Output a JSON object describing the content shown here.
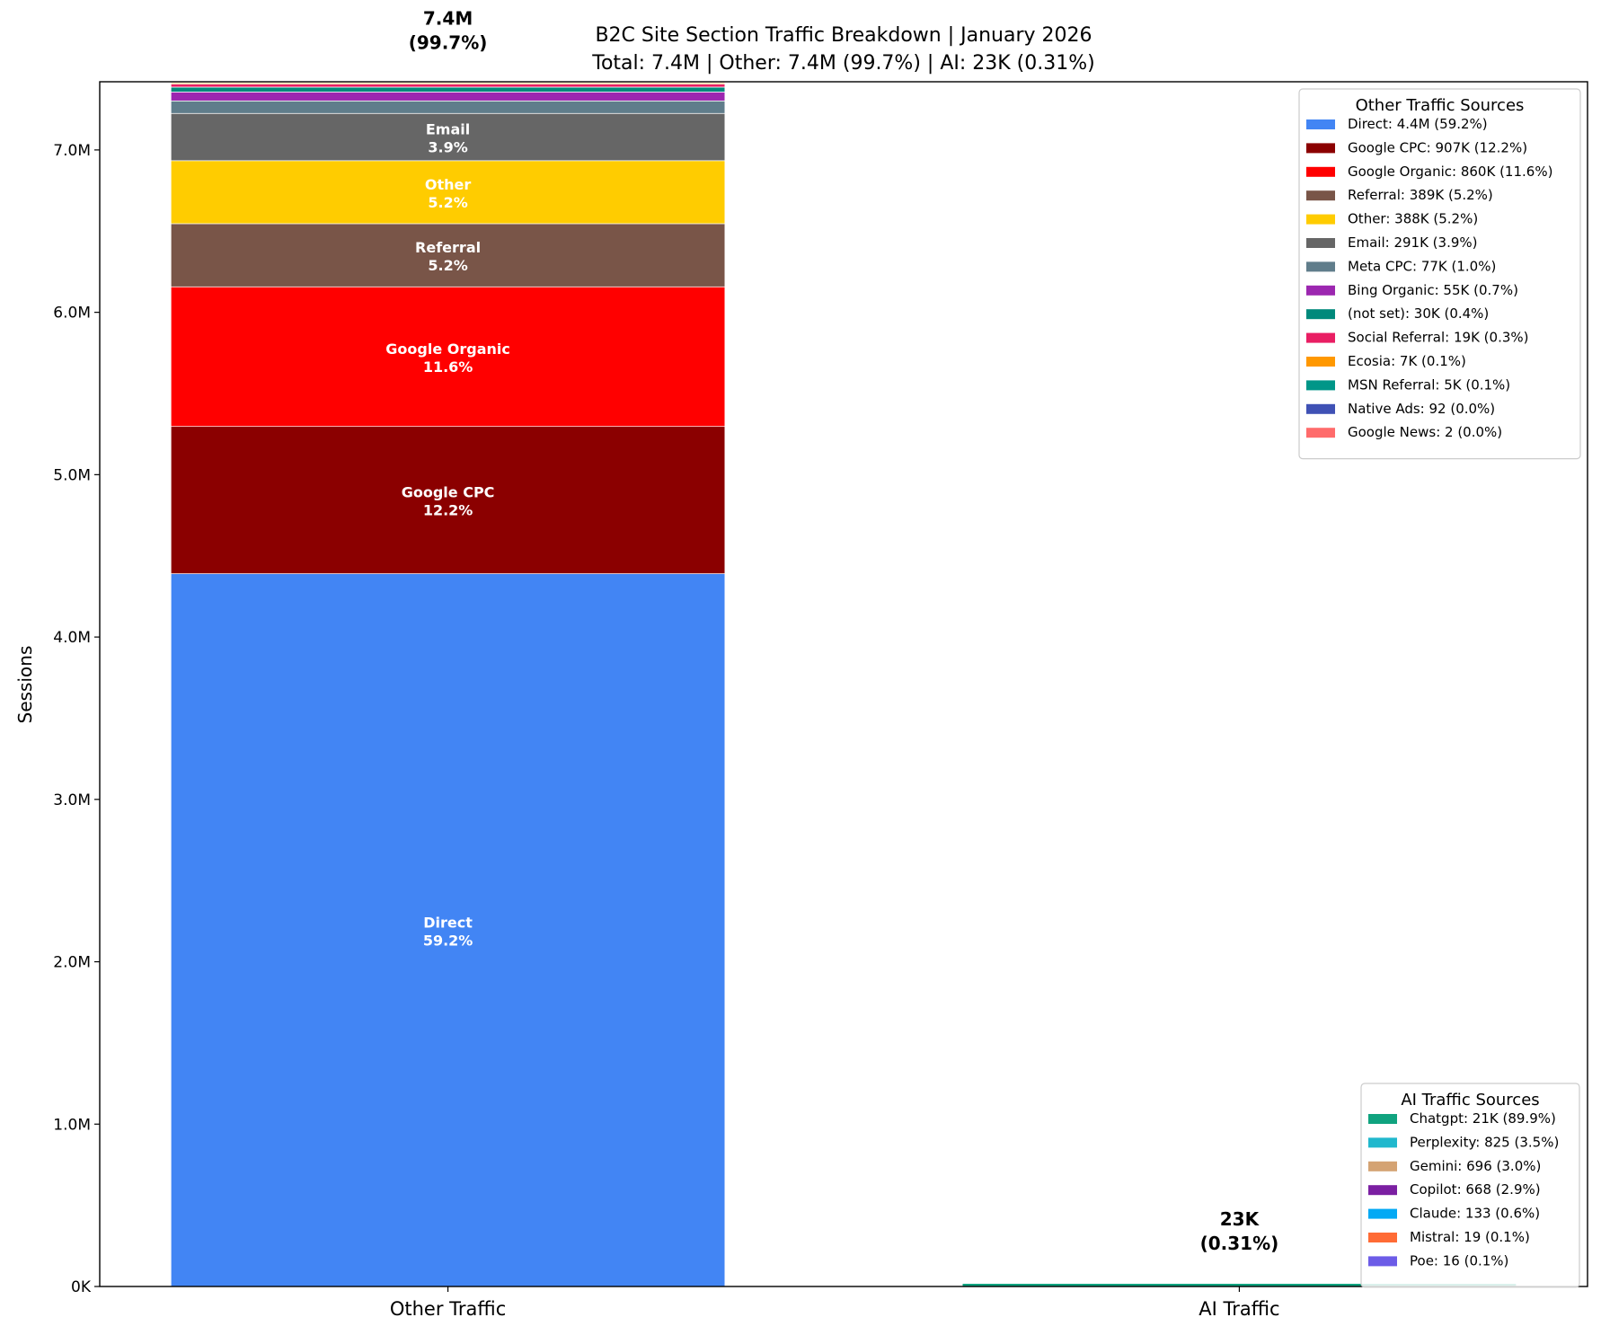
{
  "chart_data": {
    "type": "bar",
    "stacked": true,
    "title": "B2C Site Section Traffic Breakdown | January 2026",
    "subtitle": "Total: 7.4M | Other: 7.4M (99.7%) | AI: 23K (0.31%)",
    "xlabel": "",
    "ylabel": "Sessions",
    "categories": [
      "Other Traffic",
      "AI Traffic"
    ],
    "ylim": [
      0,
      7420000
    ],
    "yticks": [
      0,
      1000000,
      2000000,
      3000000,
      4000000,
      5000000,
      6000000,
      7000000
    ],
    "ytick_labels": [
      "0K",
      "1.0M",
      "2.0M",
      "3.0M",
      "4.0M",
      "5.0M",
      "6.0M",
      "7.0M"
    ],
    "grid": false,
    "bar_totals": [
      {
        "line1": "7.4M",
        "line2": "(99.7%)"
      },
      {
        "line1": "23K",
        "line2": "(0.31%)"
      }
    ],
    "groups": [
      {
        "legend_title": "Other Traffic Sources",
        "legend_placement": "upper right",
        "series": [
          {
            "name": "Direct",
            "value": 4390000,
            "pct": "59.2%",
            "legend": "Direct: 4.4M (59.2%)",
            "color": "#4285F4"
          },
          {
            "name": "Google CPC",
            "value": 907000,
            "pct": "12.2%",
            "legend": "Google CPC: 907K (12.2%)",
            "color": "#8B0000"
          },
          {
            "name": "Google Organic",
            "value": 860000,
            "pct": "11.6%",
            "legend": "Google Organic: 860K (11.6%)",
            "color": "#FF0000"
          },
          {
            "name": "Referral",
            "value": 389000,
            "pct": "5.2%",
            "legend": "Referral: 389K (5.2%)",
            "color": "#795548"
          },
          {
            "name": "Other",
            "value": 388000,
            "pct": "5.2%",
            "legend": "Other: 388K (5.2%)",
            "color": "#FFCC00"
          },
          {
            "name": "Email",
            "value": 291000,
            "pct": "3.9%",
            "legend": "Email: 291K (3.9%)",
            "color": "#666666"
          },
          {
            "name": "Meta CPC",
            "value": 77000,
            "pct": "1.0%",
            "legend": "Meta CPC: 77K (1.0%)",
            "color": "#607D8B"
          },
          {
            "name": "Bing Organic",
            "value": 55000,
            "pct": "0.7%",
            "legend": "Bing Organic: 55K (0.7%)",
            "color": "#9C27B0"
          },
          {
            "name": "(not set)",
            "value": 30000,
            "pct": "0.4%",
            "legend": "(not set): 30K (0.4%)",
            "color": "#00897B"
          },
          {
            "name": "Social Referral",
            "value": 19000,
            "pct": "0.3%",
            "legend": "Social Referral: 19K (0.3%)",
            "color": "#E91E63"
          },
          {
            "name": "Ecosia",
            "value": 7000,
            "pct": "0.1%",
            "legend": "Ecosia: 7K (0.1%)",
            "color": "#FF9800"
          },
          {
            "name": "MSN Referral",
            "value": 5000,
            "pct": "0.1%",
            "legend": "MSN Referral: 5K (0.1%)",
            "color": "#009688"
          },
          {
            "name": "Native Ads",
            "value": 92,
            "pct": "0.0%",
            "legend": "Native Ads: 92 (0.0%)",
            "color": "#3F51B5"
          },
          {
            "name": "Google News",
            "value": 2,
            "pct": "0.0%",
            "legend": "Google News: 2 (0.0%)",
            "color": "#FF6B6B"
          }
        ]
      },
      {
        "legend_title": "AI Traffic Sources",
        "legend_placement": "lower right",
        "series": [
          {
            "name": "Chatgpt",
            "value": 20700,
            "pct": "89.9%",
            "legend": "Chatgpt: 21K (89.9%)",
            "color": "#10A37F"
          },
          {
            "name": "Perplexity",
            "value": 825,
            "pct": "3.5%",
            "legend": "Perplexity: 825 (3.5%)",
            "color": "#20B8CD"
          },
          {
            "name": "Gemini",
            "value": 696,
            "pct": "3.0%",
            "legend": "Gemini: 696 (3.0%)",
            "color": "#D4A373"
          },
          {
            "name": "Copilot",
            "value": 668,
            "pct": "2.9%",
            "legend": "Copilot: 668 (2.9%)",
            "color": "#7B1FA2"
          },
          {
            "name": "Claude",
            "value": 133,
            "pct": "0.6%",
            "legend": "Claude: 133 (0.6%)",
            "color": "#03A9F4"
          },
          {
            "name": "Mistral",
            "value": 19,
            "pct": "0.1%",
            "legend": "Mistral: 19 (0.1%)",
            "color": "#FF6B35"
          },
          {
            "name": "Poe",
            "value": 16,
            "pct": "0.1%",
            "legend": "Poe: 16 (0.1%)",
            "color": "#6C5CE7"
          }
        ]
      }
    ]
  }
}
